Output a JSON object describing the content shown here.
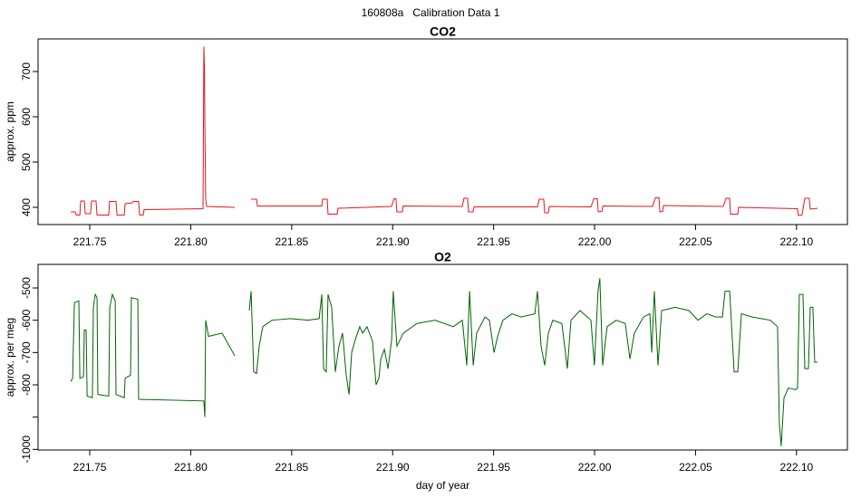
{
  "title": "160808a   Calibration Data 1",
  "chart_data": [
    {
      "type": "line",
      "title": "CO2",
      "ylabel": "approx. ppm",
      "xlim": [
        221.7244,
        222.1252
      ],
      "ylim": [
        362,
        772
      ],
      "xticks": [
        221.75,
        {
          "value": 221.8,
          "label": "221.80"
        },
        221.85,
        {
          "value": 221.9,
          "label": "221.90"
        },
        221.95,
        {
          "value": 222.0,
          "label": "222.00"
        },
        222.05,
        {
          "value": 222.1,
          "label": "222.10"
        }
      ],
      "yticks": [
        400,
        500,
        600,
        700
      ],
      "series": [
        {
          "name": "CO2",
          "color": "#e8141c",
          "x": [
            221.7406,
            221.7428,
            221.7433,
            221.7451,
            221.7455,
            221.7473,
            221.7478,
            221.7504,
            221.7509,
            221.7531,
            221.7536,
            221.7594,
            221.7598,
            221.763,
            221.7635,
            221.7671,
            221.7675,
            221.7711,
            221.7715,
            221.7742,
            221.7747,
            221.7765,
            221.7769,
            221.8061,
            221.8065,
            221.8068,
            221.807,
            221.8074,
            221.8079,
            221.8218,
            221.825,
            221.8299,
            221.8326,
            221.833,
            221.8649,
            221.8653,
            221.8676,
            221.868,
            221.8725,
            221.8729,
            221.8994,
            221.9007,
            221.9016,
            221.9021,
            221.9048,
            221.9052,
            221.9345,
            221.9353,
            221.9371,
            221.9376,
            221.9398,
            221.9403,
            221.9717,
            221.9726,
            221.9748,
            221.9753,
            221.9771,
            221.9776,
            221.9982,
            221.9996,
            222.0014,
            222.0018,
            222.0036,
            222.0041,
            222.0287,
            222.0301,
            222.0319,
            222.0323,
            222.0337,
            222.0341,
            222.0637,
            222.0651,
            222.0669,
            222.0673,
            222.0709,
            222.0713,
            222.1005,
            222.1009,
            222.1027,
            222.1041,
            222.1063,
            222.1068,
            222.1104
          ],
          "values": [
            390,
            390,
            383,
            383,
            414,
            414,
            386,
            386,
            414,
            414,
            383,
            383,
            413,
            413,
            383,
            383,
            408,
            410,
            413,
            413,
            383,
            383,
            395,
            397,
            755,
            710,
            585,
            420,
            402,
            400,
            null,
            418,
            418,
            403,
            403,
            418,
            418,
            385,
            385,
            398,
            402,
            419,
            419,
            390,
            390,
            403,
            402,
            420,
            420,
            390,
            390,
            401,
            401,
            418,
            418,
            388,
            388,
            402,
            401,
            419,
            419,
            390,
            391,
            403,
            402,
            421,
            421,
            390,
            391,
            404,
            402,
            420,
            420,
            385,
            385,
            400,
            397,
            382,
            383,
            420,
            420,
            396,
            398
          ]
        }
      ]
    },
    {
      "type": "line",
      "title": "O2",
      "ylabel": "approx. per meg",
      "xlabel": "day of year",
      "xlim": [
        221.7244,
        222.1252
      ],
      "ylim": [
        -1002,
        -427
      ],
      "xticks": [
        221.75,
        {
          "value": 221.8,
          "label": "221.80"
        },
        221.85,
        {
          "value": 221.9,
          "label": "221.90"
        },
        221.95,
        {
          "value": 222.0,
          "label": "222.00"
        },
        222.05,
        {
          "value": 222.1,
          "label": "222.10"
        }
      ],
      "yticks": [
        -500,
        -600,
        -700,
        -800,
        {
          "value": -900,
          "label": null
        },
        -1000
      ],
      "series": [
        {
          "name": "O2",
          "color": "#006400",
          "x": [
            221.7406,
            221.7415,
            221.7424,
            221.7446,
            221.7451,
            221.7469,
            221.7473,
            221.7482,
            221.7487,
            221.7513,
            221.7518,
            221.7527,
            221.7536,
            221.754,
            221.7594,
            221.7599,
            221.7612,
            221.7626,
            221.763,
            221.7671,
            221.7675,
            221.7702,
            221.7706,
            221.7738,
            221.7742,
            221.8065,
            221.807,
            221.8074,
            221.8088,
            221.8155,
            221.8218,
            221.825,
            221.829,
            221.8299,
            221.8312,
            221.8326,
            221.8339,
            221.8357,
            221.8402,
            221.8492,
            221.8582,
            221.8636,
            221.8649,
            221.8658,
            221.8671,
            221.868,
            221.8698,
            221.8716,
            221.8734,
            221.8752,
            221.877,
            221.8784,
            221.8797,
            221.8815,
            221.8837,
            221.8851,
            221.8873,
            221.89,
            221.8918,
            221.8932,
            221.8941,
            221.8959,
            221.8977,
            221.8995,
            221.9003,
            221.9021,
            221.9053,
            221.912,
            221.921,
            221.93,
            221.9345,
            221.9367,
            221.9381,
            221.9399,
            221.9416,
            221.9457,
            221.9479,
            221.9502,
            221.952,
            221.9546,
            221.9591,
            221.9636,
            221.9704,
            221.9717,
            221.9735,
            221.9753,
            221.9771,
            221.9793,
            221.9838,
            221.9865,
            221.9883,
            221.9928,
            221.9982,
            221.9999,
            222.0017,
            222.0026,
            222.004,
            222.0062,
            222.0107,
            222.0152,
            222.0175,
            222.0197,
            222.0242,
            222.0274,
            222.0283,
            222.0296,
            222.0314,
            222.0332,
            222.0399,
            222.0467,
            222.0512,
            222.0556,
            222.0601,
            222.0633,
            222.0646,
            222.0669,
            222.0691,
            222.0709,
            222.0727,
            222.0781,
            222.0871,
            222.0906,
            222.0915,
            222.0924,
            222.0938,
            222.096,
            222.0996,
            222.1005,
            222.1014,
            222.1032,
            222.1041,
            222.1059,
            222.1068,
            222.1081,
            222.109,
            222.1104
          ],
          "values": [
            -790,
            -780,
            -545,
            -540,
            -780,
            -775,
            -630,
            -630,
            -835,
            -840,
            -560,
            -520,
            -530,
            -830,
            -835,
            -560,
            -520,
            -540,
            -830,
            -840,
            -780,
            -770,
            -530,
            -535,
            -845,
            -850,
            -900,
            -600,
            -650,
            -640,
            -710,
            null,
            -570,
            -510,
            -760,
            -765,
            -680,
            -620,
            -600,
            -595,
            -600,
            -595,
            -520,
            -750,
            -760,
            -520,
            -560,
            -760,
            -680,
            -640,
            -770,
            -830,
            -700,
            -660,
            -620,
            -640,
            -620,
            -665,
            -800,
            -780,
            -720,
            -690,
            -750,
            -660,
            -510,
            -680,
            -640,
            -610,
            -600,
            -620,
            -600,
            -740,
            -510,
            -740,
            -640,
            -590,
            -600,
            -700,
            -650,
            -600,
            -580,
            -590,
            -580,
            -510,
            -680,
            -740,
            -640,
            -600,
            -610,
            -750,
            -600,
            -570,
            -600,
            -740,
            -510,
            -470,
            -740,
            -620,
            -600,
            -610,
            -720,
            -640,
            -590,
            -580,
            -700,
            -510,
            -740,
            -570,
            -560,
            -570,
            -600,
            -580,
            -590,
            -590,
            -510,
            -510,
            -760,
            -760,
            -580,
            -590,
            -600,
            -620,
            -920,
            -990,
            -840,
            -810,
            -815,
            -810,
            -520,
            -520,
            -750,
            -750,
            -560,
            -560,
            -730,
            -730
          ]
        }
      ]
    }
  ]
}
